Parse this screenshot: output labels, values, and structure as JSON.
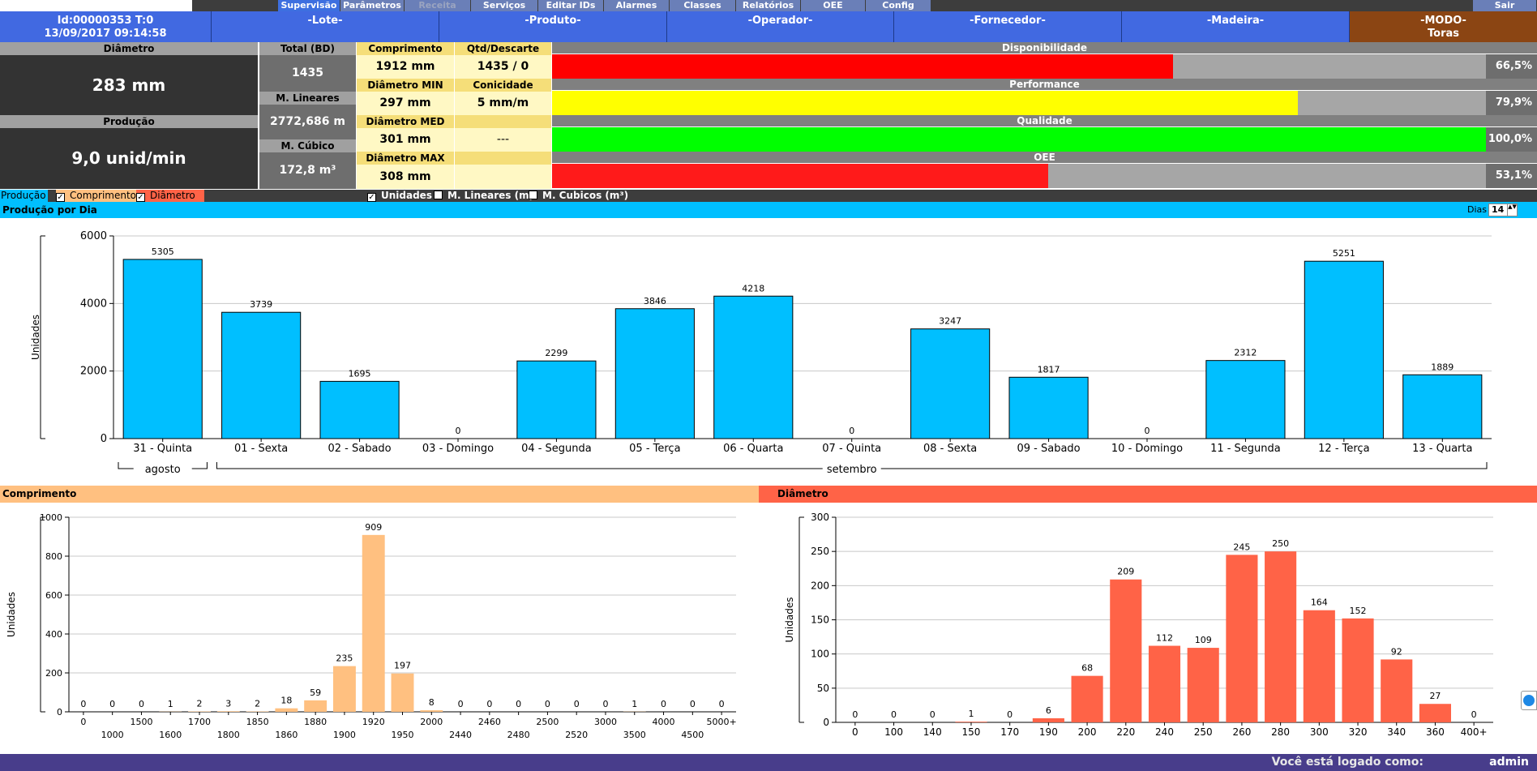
{
  "menu": {
    "items": [
      "Supervisão",
      "Parâmetros",
      "Receita",
      "Serviços",
      "Editar IDs",
      "Alarmes",
      "Classes",
      "Relatórios",
      "OEE",
      "Config"
    ],
    "exit": "Sair"
  },
  "header": {
    "id": "Id:00000353  T:0",
    "datetime": "13/09/2017 09:14:58",
    "lote": "-Lote-",
    "produto": "-Produto-",
    "operador": "-Operador-",
    "fornecedor": "-Fornecedor-",
    "madeira": "-Madeira-",
    "modo_label": "-MODO-",
    "modo_value": "Toras"
  },
  "stats": {
    "diametro_label": "Diâmetro",
    "diametro_value": "283 mm",
    "producao_label": "Produção",
    "producao_value": "9,0 unid/min",
    "total_label": "Total (BD)",
    "total_value": "1435",
    "m_lineares_label": "M. Lineares",
    "m_lineares_value": "2772,686 m",
    "m_cubico_label": "M. Cúbico",
    "m_cubico_value": "172,8 m³",
    "comprimento_label": "Comprimento",
    "comprimento_value": "1912 mm",
    "qtd_label": "Qtd/Descarte",
    "qtd_value": "1435 / 0",
    "dmin_label": "Diâmetro MIN",
    "dmin_value": "297 mm",
    "conicidade_label": "Conicidade",
    "conicidade_value": "5 mm/m",
    "dmed_label": "Diâmetro MED",
    "dmed_value": "301 mm",
    "blank_value": "---",
    "dmax_label": "Diâmetro MAX",
    "dmax_value": "308 mm"
  },
  "kpis": [
    {
      "label": "Disponibilidade",
      "value": 66.5,
      "text": "66,5%",
      "color": "#ff0000"
    },
    {
      "label": "Performance",
      "value": 79.9,
      "text": "79,9%",
      "color": "#ffff00"
    },
    {
      "label": "Qualidade",
      "value": 100.0,
      "text": "100,0%",
      "color": "#00ff00"
    },
    {
      "label": "OEE",
      "value": 53.1,
      "text": "53,1%",
      "color": "#ff1a1a"
    }
  ],
  "checkbar": {
    "producao": "Produção",
    "comprimento": "Comprimento",
    "diametro": "Diâmetro",
    "unidades": "Unidades",
    "m_lineares": "M. Lineares (m)",
    "m_cubicos": "M. Cubicos (m³)",
    "check": "✓"
  },
  "production": {
    "title": "Produção por Dia",
    "dias_label": "Dias",
    "dias_value": "14",
    "spin_arrows": "▲▼"
  },
  "sections": {
    "comprimento": "Comprimento",
    "diametro": "Diâmetro"
  },
  "colors": {
    "production_bar": "#00bfff",
    "comprimento_bar": "#ffc080",
    "diametro_bar": "#ff6347"
  },
  "chart_data": [
    {
      "type": "bar",
      "title": "",
      "xlabel": "",
      "ylabel": "Unidades",
      "ylim": [
        0,
        6000
      ],
      "yticks": [
        0,
        2000,
        4000,
        6000
      ],
      "grid": true,
      "categories": [
        "31 - Quinta",
        "01 - Sexta",
        "02 - Sabado",
        "03 - Domingo",
        "04 - Segunda",
        "05 - Terça",
        "06 - Quarta",
        "07 - Quinta",
        "08 - Sexta",
        "09 - Sabado",
        "10 - Domingo",
        "11 - Segunda",
        "12 - Terça",
        "13 - Quarta"
      ],
      "values": [
        5305,
        3739,
        1695,
        0,
        2299,
        3846,
        4218,
        0,
        3247,
        1817,
        0,
        2312,
        5251,
        1889
      ],
      "groups": [
        {
          "label": "agosto",
          "start": 0,
          "end": 0
        },
        {
          "label": "setembro",
          "start": 1,
          "end": 13
        }
      ]
    },
    {
      "type": "bar",
      "title": "",
      "xlabel": "",
      "ylabel": "Unidades",
      "ylim": [
        0,
        1000
      ],
      "yticks": [
        0,
        200,
        400,
        600,
        800,
        1000
      ],
      "grid": true,
      "categories": [
        "0",
        "1000",
        "1500",
        "1600",
        "1700",
        "1800",
        "1850",
        "1860",
        "1880",
        "1900",
        "1920",
        "1950",
        "2000",
        "2440",
        "2460",
        "2480",
        "2500",
        "2520",
        "3000",
        "3500",
        "4000",
        "4500",
        "5000+"
      ],
      "values": [
        0,
        0,
        0,
        1,
        2,
        3,
        2,
        18,
        59,
        235,
        909,
        197,
        8,
        0,
        0,
        0,
        0,
        0,
        0,
        1,
        0,
        0,
        0
      ]
    },
    {
      "type": "bar",
      "title": "",
      "xlabel": "",
      "ylabel": "Unidades",
      "ylim": [
        0,
        300
      ],
      "yticks": [
        0,
        50,
        100,
        150,
        200,
        250,
        300
      ],
      "grid": true,
      "categories": [
        "0",
        "100",
        "140",
        "150",
        "170",
        "190",
        "200",
        "220",
        "240",
        "250",
        "260",
        "280",
        "300",
        "320",
        "340",
        "360",
        "400+"
      ],
      "values": [
        0,
        0,
        0,
        1,
        0,
        6,
        68,
        209,
        112,
        109,
        245,
        250,
        164,
        152,
        92,
        27,
        0
      ]
    }
  ],
  "footer": {
    "message": "Você está logado como:",
    "user": "admin"
  }
}
